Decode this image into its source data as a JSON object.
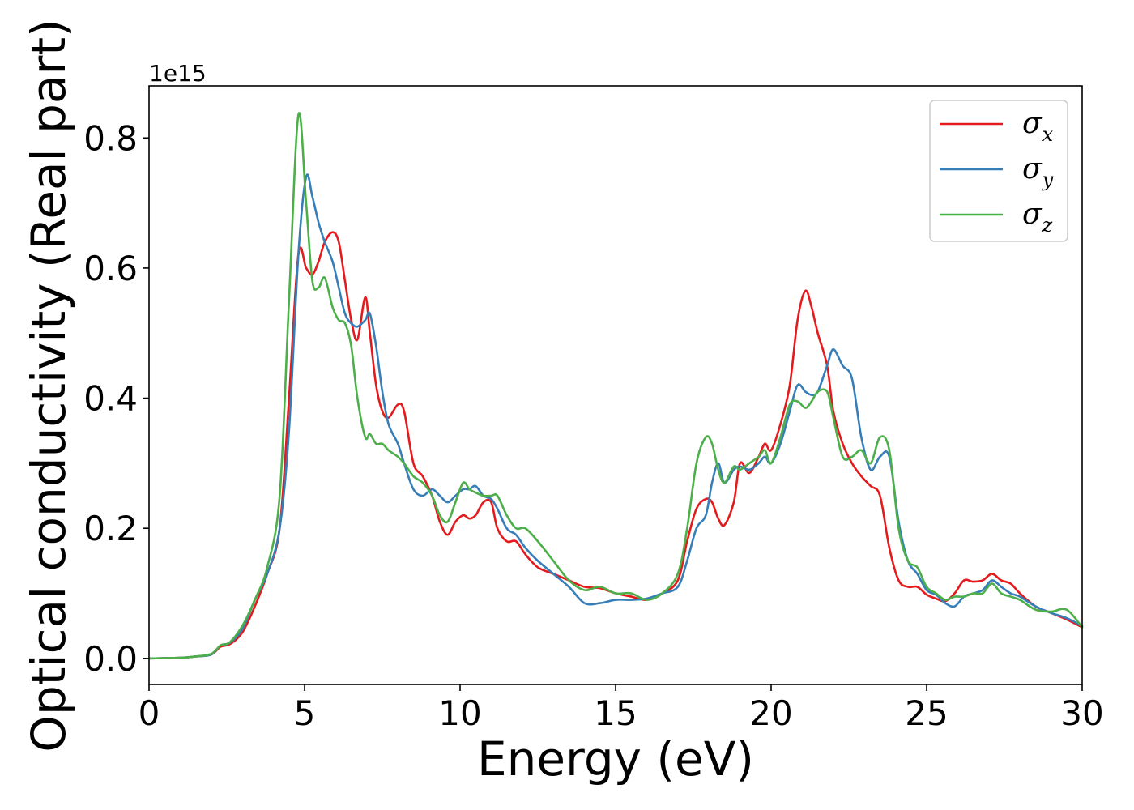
{
  "chart_data": {
    "type": "line",
    "xlabel": "Energy (eV)",
    "ylabel": "Optical conductivity (Real part)",
    "y_offset_label": "1e15",
    "xlim": [
      0,
      30
    ],
    "ylim": [
      -0.04,
      0.88
    ],
    "xticks": [
      0,
      5,
      10,
      15,
      20,
      25,
      30
    ],
    "xtick_labels": [
      "0",
      "5",
      "10",
      "15",
      "20",
      "25",
      "30"
    ],
    "yticks": [
      0.0,
      0.2,
      0.4,
      0.6,
      0.8
    ],
    "ytick_labels": [
      "0.0",
      "0.2",
      "0.4",
      "0.6",
      "0.8"
    ],
    "grid": false,
    "legend_position": "top-right",
    "series": [
      {
        "name": "σx",
        "symbol": "σ",
        "subscript": "x",
        "color": "#e41a1c",
        "x": [
          0,
          1,
          1.5,
          2,
          2.3,
          2.6,
          3,
          3.4,
          3.8,
          4.2,
          4.5,
          4.8,
          5.05,
          5.25,
          5.45,
          5.65,
          5.9,
          6.1,
          6.3,
          6.5,
          6.7,
          6.95,
          7.1,
          7.3,
          7.5,
          7.7,
          8.0,
          8.2,
          8.5,
          8.8,
          9.1,
          9.35,
          9.6,
          9.85,
          10.1,
          10.3,
          10.5,
          10.75,
          11.0,
          11.2,
          11.5,
          11.8,
          12.1,
          12.5,
          13.0,
          13.5,
          14.0,
          14.5,
          15.0,
          15.5,
          16.0,
          16.5,
          17.0,
          17.3,
          17.6,
          17.9,
          18.1,
          18.3,
          18.5,
          18.8,
          19.0,
          19.3,
          19.6,
          19.8,
          20.0,
          20.3,
          20.6,
          20.85,
          21.1,
          21.3,
          21.5,
          21.8,
          22.0,
          22.3,
          22.6,
          22.9,
          23.2,
          23.5,
          23.8,
          24.1,
          24.4,
          24.7,
          25.0,
          25.3,
          25.6,
          25.9,
          26.2,
          26.5,
          26.8,
          27.1,
          27.4,
          27.7,
          28.0,
          28.5,
          29.0,
          29.5,
          30.0
        ],
        "y": [
          0.0,
          0.001,
          0.003,
          0.006,
          0.018,
          0.022,
          0.04,
          0.08,
          0.13,
          0.2,
          0.4,
          0.62,
          0.6,
          0.59,
          0.61,
          0.64,
          0.655,
          0.64,
          0.58,
          0.52,
          0.49,
          0.555,
          0.5,
          0.42,
          0.38,
          0.37,
          0.39,
          0.38,
          0.3,
          0.28,
          0.25,
          0.21,
          0.19,
          0.21,
          0.22,
          0.215,
          0.22,
          0.24,
          0.24,
          0.2,
          0.18,
          0.18,
          0.16,
          0.14,
          0.13,
          0.12,
          0.11,
          0.108,
          0.1,
          0.095,
          0.09,
          0.1,
          0.12,
          0.18,
          0.23,
          0.245,
          0.24,
          0.215,
          0.205,
          0.24,
          0.3,
          0.285,
          0.31,
          0.33,
          0.32,
          0.36,
          0.42,
          0.52,
          0.565,
          0.54,
          0.5,
          0.45,
          0.38,
          0.33,
          0.3,
          0.28,
          0.265,
          0.25,
          0.17,
          0.12,
          0.11,
          0.11,
          0.098,
          0.092,
          0.088,
          0.1,
          0.12,
          0.118,
          0.12,
          0.13,
          0.12,
          0.115,
          0.1,
          0.08,
          0.07,
          0.06,
          0.048
        ]
      },
      {
        "name": "σy",
        "symbol": "σ",
        "subscript": "y",
        "color": "#377eb8",
        "x": [
          0,
          1,
          1.5,
          2,
          2.3,
          2.6,
          3,
          3.4,
          3.8,
          4.2,
          4.5,
          4.8,
          5.05,
          5.25,
          5.45,
          5.65,
          5.9,
          6.1,
          6.3,
          6.5,
          6.7,
          6.95,
          7.1,
          7.3,
          7.5,
          7.7,
          8.0,
          8.2,
          8.5,
          8.8,
          9.1,
          9.35,
          9.6,
          9.85,
          10.1,
          10.3,
          10.5,
          10.75,
          11.0,
          11.2,
          11.5,
          11.8,
          12.1,
          12.5,
          13.0,
          13.5,
          14.0,
          14.5,
          15.0,
          15.5,
          16.0,
          16.5,
          17.0,
          17.3,
          17.6,
          17.9,
          18.1,
          18.3,
          18.5,
          18.8,
          19.0,
          19.3,
          19.6,
          19.8,
          20.0,
          20.3,
          20.6,
          20.85,
          21.1,
          21.3,
          21.5,
          21.8,
          22.0,
          22.3,
          22.6,
          22.9,
          23.2,
          23.5,
          23.8,
          24.1,
          24.4,
          24.7,
          25.0,
          25.3,
          25.6,
          25.9,
          26.2,
          26.5,
          26.8,
          27.1,
          27.4,
          27.7,
          28.0,
          28.5,
          29.0,
          29.5,
          30.0
        ],
        "y": [
          0.0,
          0.001,
          0.003,
          0.006,
          0.02,
          0.024,
          0.045,
          0.09,
          0.13,
          0.2,
          0.35,
          0.62,
          0.74,
          0.71,
          0.67,
          0.64,
          0.61,
          0.57,
          0.53,
          0.515,
          0.51,
          0.52,
          0.53,
          0.48,
          0.41,
          0.36,
          0.33,
          0.3,
          0.26,
          0.25,
          0.26,
          0.25,
          0.24,
          0.25,
          0.26,
          0.26,
          0.265,
          0.25,
          0.245,
          0.23,
          0.2,
          0.19,
          0.17,
          0.15,
          0.13,
          0.11,
          0.085,
          0.085,
          0.09,
          0.09,
          0.092,
          0.1,
          0.11,
          0.15,
          0.2,
          0.22,
          0.27,
          0.3,
          0.27,
          0.29,
          0.295,
          0.29,
          0.3,
          0.31,
          0.3,
          0.33,
          0.38,
          0.42,
          0.41,
          0.405,
          0.41,
          0.45,
          0.475,
          0.45,
          0.43,
          0.34,
          0.29,
          0.31,
          0.31,
          0.21,
          0.15,
          0.13,
          0.105,
          0.098,
          0.085,
          0.08,
          0.095,
          0.1,
          0.105,
          0.12,
          0.11,
          0.1,
          0.095,
          0.08,
          0.07,
          0.062,
          0.05
        ]
      },
      {
        "name": "σz",
        "symbol": "σ",
        "subscript": "z",
        "color": "#4daf4a",
        "x": [
          0,
          1,
          1.5,
          2,
          2.3,
          2.6,
          3,
          3.4,
          3.8,
          4.2,
          4.5,
          4.8,
          5.05,
          5.25,
          5.45,
          5.65,
          5.9,
          6.1,
          6.3,
          6.5,
          6.7,
          6.95,
          7.1,
          7.3,
          7.5,
          7.7,
          8.0,
          8.2,
          8.5,
          8.8,
          9.1,
          9.35,
          9.6,
          9.85,
          10.1,
          10.3,
          10.5,
          10.75,
          11.0,
          11.2,
          11.5,
          11.8,
          12.1,
          12.5,
          13.0,
          13.5,
          14.0,
          14.5,
          15.0,
          15.5,
          16.0,
          16.5,
          17.0,
          17.3,
          17.6,
          17.9,
          18.1,
          18.3,
          18.5,
          18.8,
          19.0,
          19.3,
          19.6,
          19.8,
          20.0,
          20.3,
          20.6,
          20.85,
          21.1,
          21.3,
          21.5,
          21.8,
          22.0,
          22.3,
          22.6,
          22.9,
          23.2,
          23.5,
          23.8,
          24.1,
          24.4,
          24.7,
          25.0,
          25.3,
          25.6,
          25.9,
          26.2,
          26.5,
          26.8,
          27.1,
          27.4,
          27.7,
          28.0,
          28.5,
          29.0,
          29.5,
          30.0
        ],
        "y": [
          0.0,
          0.001,
          0.003,
          0.007,
          0.02,
          0.025,
          0.05,
          0.09,
          0.14,
          0.25,
          0.55,
          0.835,
          0.7,
          0.58,
          0.57,
          0.585,
          0.54,
          0.52,
          0.515,
          0.48,
          0.4,
          0.34,
          0.345,
          0.33,
          0.33,
          0.32,
          0.31,
          0.3,
          0.28,
          0.27,
          0.25,
          0.22,
          0.21,
          0.24,
          0.27,
          0.26,
          0.255,
          0.25,
          0.25,
          0.25,
          0.22,
          0.2,
          0.2,
          0.18,
          0.15,
          0.12,
          0.105,
          0.11,
          0.1,
          0.1,
          0.09,
          0.1,
          0.13,
          0.2,
          0.3,
          0.34,
          0.33,
          0.29,
          0.27,
          0.295,
          0.29,
          0.3,
          0.31,
          0.32,
          0.3,
          0.34,
          0.39,
          0.395,
          0.385,
          0.395,
          0.41,
          0.41,
          0.37,
          0.31,
          0.31,
          0.32,
          0.3,
          0.34,
          0.32,
          0.2,
          0.15,
          0.14,
          0.11,
          0.1,
          0.09,
          0.095,
          0.095,
          0.1,
          0.1,
          0.115,
          0.1,
          0.095,
          0.09,
          0.075,
          0.072,
          0.075,
          0.048
        ]
      }
    ]
  }
}
